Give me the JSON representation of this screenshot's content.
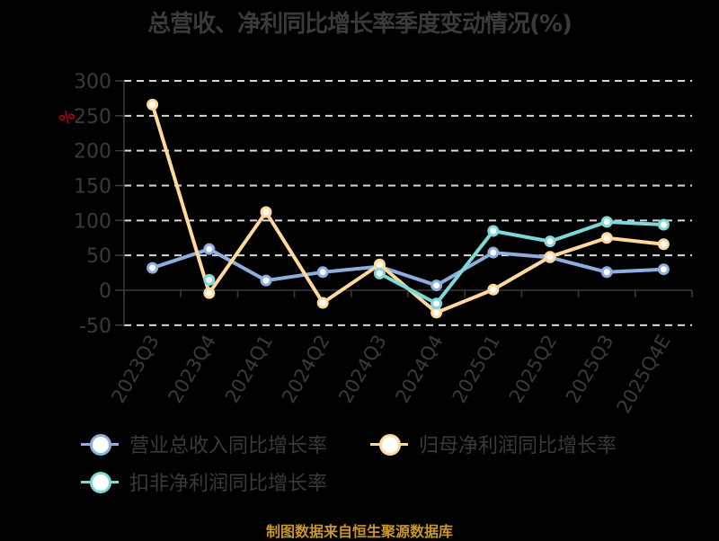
{
  "title": "总营收、净利同比增长率季度变动情况(%)",
  "source_note": "制图数据来自恒生聚源数据库",
  "unit_label": "%",
  "colors": {
    "revenue": "#8eaee0",
    "net_profit": "#ffd89c",
    "deducted_net_profit": "#7fd8d8",
    "axis_text": "#3a3a3a",
    "grid": "#d9d9d9",
    "unit": "#e00000",
    "source": "#c8962a"
  },
  "legend": [
    {
      "key": "revenue",
      "label": "营业总收入同比增长率"
    },
    {
      "key": "net_profit",
      "label": "归母净利润同比增长率"
    },
    {
      "key": "deducted_net_profit",
      "label": "扣非净利润同比增长率"
    }
  ],
  "chart_data": {
    "type": "line",
    "title": "总营收、净利同比增长率季度变动情况(%)",
    "xlabel": "",
    "ylabel": "%",
    "ylim": [
      -50,
      300
    ],
    "yticks": [
      300,
      250,
      200,
      150,
      100,
      50,
      0,
      -50
    ],
    "grid": true,
    "legend_position": "bottom",
    "categories": [
      "2023Q3",
      "2023Q4",
      "2024Q1",
      "2024Q2",
      "2024Q3",
      "2024Q4",
      "2025Q1",
      "2025Q2",
      "2025Q3",
      "2025Q4E"
    ],
    "series": [
      {
        "name": "营业总收入同比增长率",
        "values": [
          32,
          59,
          14,
          26,
          34,
          7,
          54,
          47,
          26,
          30
        ]
      },
      {
        "name": "归母净利润同比增长率",
        "values": [
          266,
          -4,
          112,
          -18,
          37,
          -32,
          1,
          48,
          75,
          66
        ]
      },
      {
        "name": "扣非净利润同比增长率",
        "values": [
          null,
          15,
          null,
          null,
          24,
          -19,
          85,
          70,
          98,
          94
        ]
      }
    ]
  }
}
